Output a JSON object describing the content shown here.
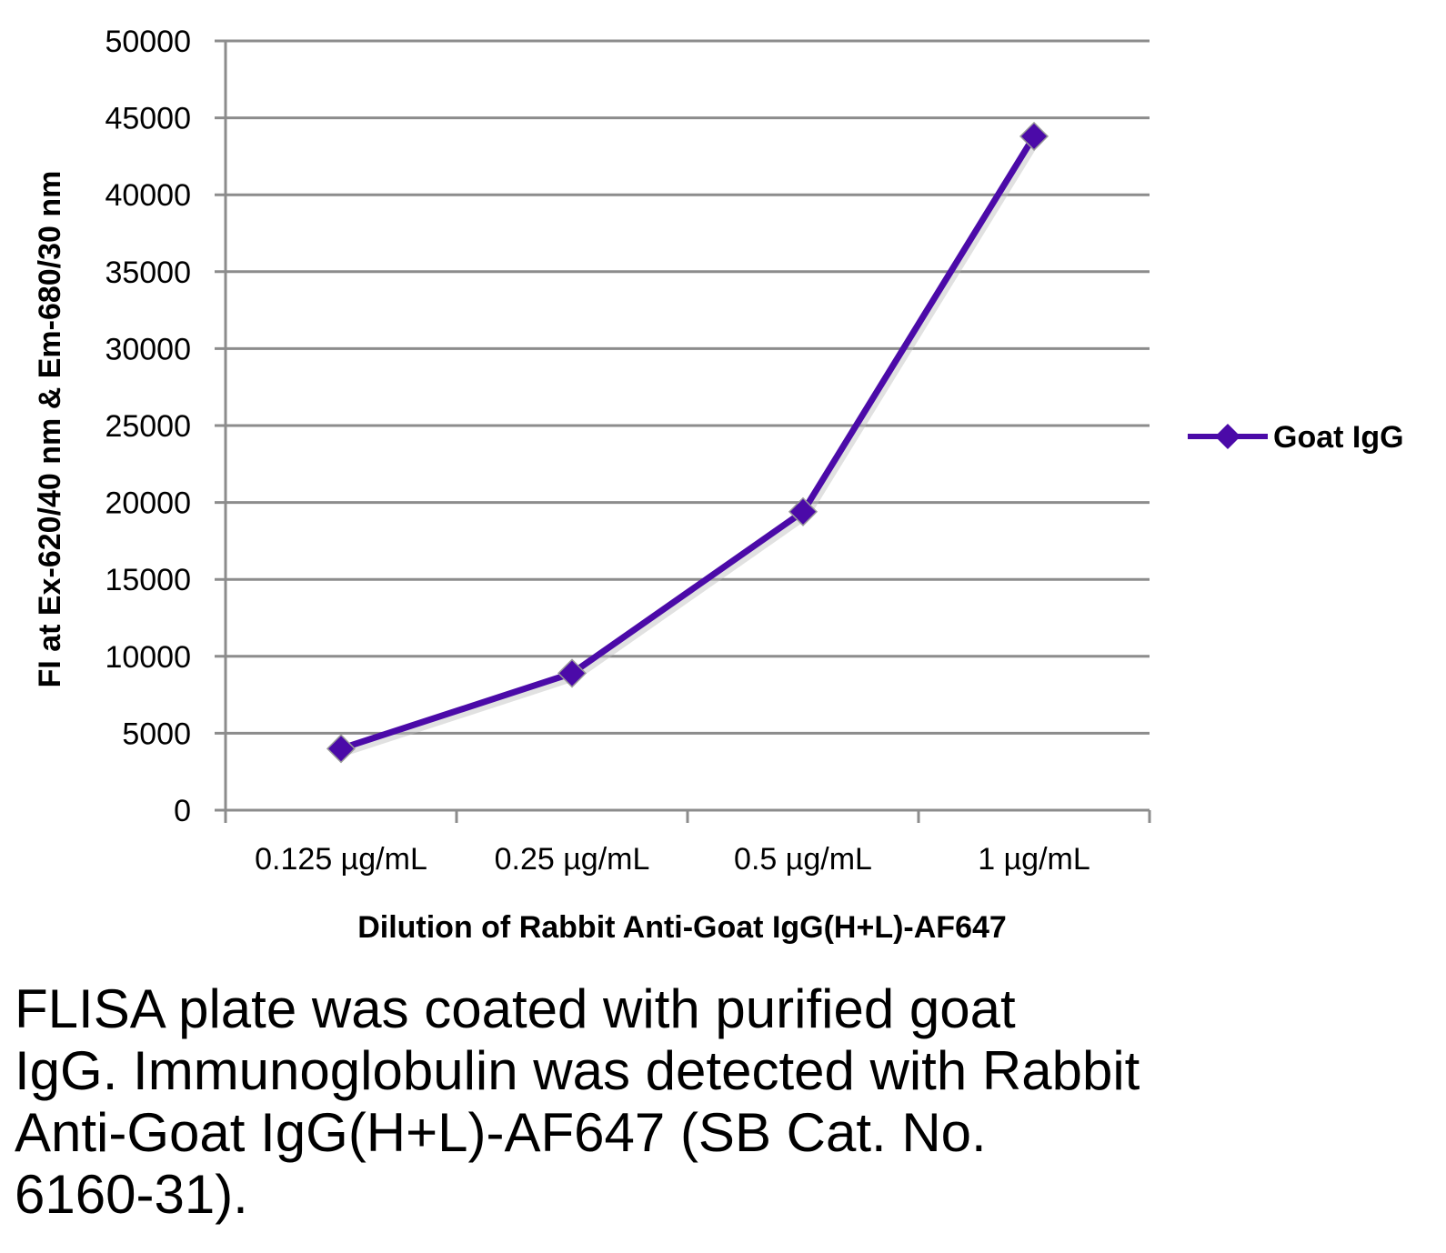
{
  "chart_data": {
    "type": "line",
    "categories": [
      "0.125 µg/mL",
      "0.25 µg/mL",
      "0.5 µg/mL",
      "1 µg/mL"
    ],
    "series": [
      {
        "name": "Goat IgG",
        "values": [
          4000,
          8900,
          19400,
          43800
        ],
        "color": "#4B0AA8",
        "marker": "diamond"
      }
    ],
    "xlabel": "Dilution of Rabbit Anti-Goat IgG(H+L)-AF647",
    "ylabel": "FI at Ex-620/40 nm & Em-680/30 nm",
    "ylim": [
      0,
      50000
    ],
    "yticks": [
      "0",
      "5000",
      "10000",
      "15000",
      "20000",
      "25000",
      "30000",
      "35000",
      "40000",
      "45000",
      "50000"
    ],
    "grid": true,
    "gridColor": "#8C8C8C",
    "legend_position": "right"
  },
  "caption": {
    "lines": [
      "FLISA plate was coated with purified goat",
      "IgG.  Immunoglobulin was detected with Rabbit",
      "Anti-Goat IgG(H+L)-AF647 (SB Cat. No.",
      "6160-31)."
    ]
  }
}
